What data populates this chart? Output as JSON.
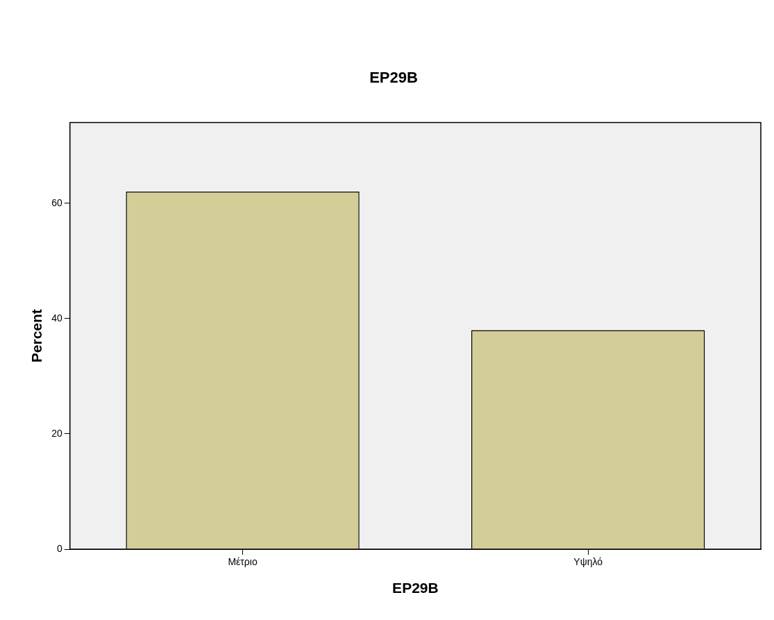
{
  "chart_data": {
    "type": "bar",
    "title": "EP29B",
    "xlabel": "EP29B",
    "ylabel": "Percent",
    "categories": [
      "Μέτριο",
      "Υψηλό"
    ],
    "values": [
      62,
      38
    ],
    "color": "#d3ce97",
    "ylim": [
      0,
      74
    ],
    "yticks": [
      0,
      20,
      40,
      60
    ],
    "grid": false,
    "legend": false
  }
}
